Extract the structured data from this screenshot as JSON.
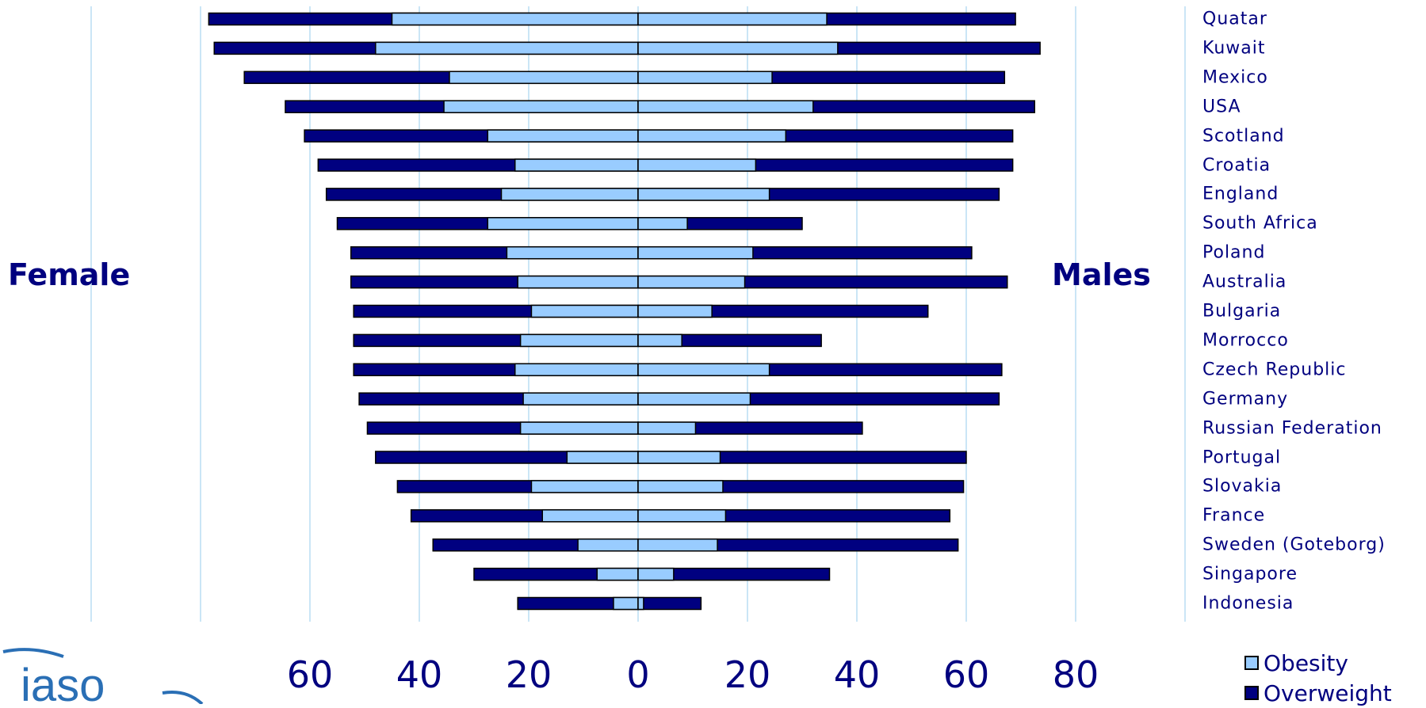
{
  "labels": {
    "female": "Female",
    "males": "Males"
  },
  "colors": {
    "obesity": "#99ccff",
    "overweight": "#000080",
    "grid": "#a8d4f0",
    "text": "#00007f"
  },
  "chart_data": {
    "type": "bar",
    "orientation": "horizontal-diverging",
    "categories": [
      "Quatar",
      "Kuwait",
      "Mexico",
      "USA",
      "Scotland",
      "Croatia",
      "England",
      "South Africa",
      "Poland",
      "Australia",
      "Bulgaria",
      "Morrocco",
      "Czech Republic",
      "Germany",
      "Russian Federation",
      "Portugal",
      "Slovakia",
      "France",
      "Sweden (Goteborg)",
      "Singapore",
      "Indonesia"
    ],
    "series": [
      {
        "name": "Obesity",
        "side": "female",
        "values": [
          45,
          48,
          34.5,
          35.5,
          27.5,
          22.5,
          25,
          27.5,
          24,
          22,
          19.5,
          21.5,
          22.5,
          21,
          21.5,
          13,
          19.5,
          17.5,
          11,
          7.5,
          4.5
        ]
      },
      {
        "name": "Overweight",
        "side": "female",
        "values": [
          78.5,
          77.5,
          72,
          64.5,
          61,
          58.5,
          57,
          55,
          52.5,
          52.5,
          52,
          52,
          52,
          51,
          49.5,
          48,
          44,
          41.5,
          37.5,
          30,
          22
        ]
      },
      {
        "name": "Obesity",
        "side": "male",
        "values": [
          34.5,
          36.5,
          24.5,
          32,
          27,
          21.5,
          24,
          9,
          21,
          19.5,
          13.5,
          8,
          24,
          20.5,
          10.5,
          15,
          15.5,
          16,
          14.5,
          6.5,
          1
        ]
      },
      {
        "name": "Overweight",
        "side": "male",
        "values": [
          69,
          73.5,
          67,
          72.5,
          68.5,
          68.5,
          66,
          30,
          61,
          67.5,
          53,
          33.5,
          66.5,
          66,
          41,
          60,
          59.5,
          57,
          58.5,
          35,
          11.5
        ]
      }
    ],
    "x_ticks": [
      "60",
      "40",
      "20",
      "0",
      "20",
      "40",
      "60",
      "80"
    ],
    "xlim": [
      -80,
      100
    ],
    "grid": true,
    "legend_position": "bottom-right",
    "legend": [
      "Obesity",
      "Overweight"
    ]
  },
  "logo": {
    "text": "iaso"
  }
}
